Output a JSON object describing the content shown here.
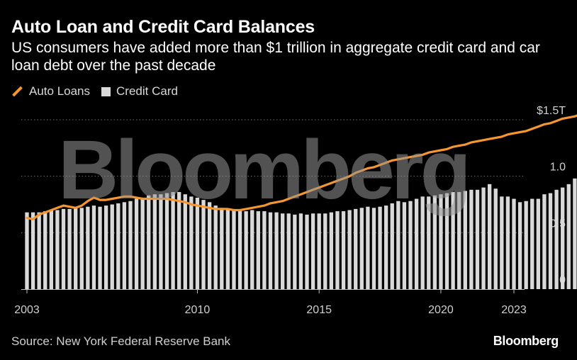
{
  "header": {
    "title": "Auto Loan and Credit Card Balances",
    "subtitle": "US consumers have added more than $1 trillion in aggregate credit card and car loan debt over the past decade"
  },
  "legend": {
    "auto_label": "Auto Loans",
    "card_label": "Credit Card"
  },
  "footer": {
    "source": "Source: New York Federal Reserve Bank",
    "brand": "Bloomberg"
  },
  "watermark": "Bloomberg",
  "colors": {
    "background": "#000000",
    "auto_line": "#f5962e",
    "card_bar": "#d9d9d9",
    "grid": "#6e6e6e"
  },
  "chart_data": {
    "type": "bar+line",
    "x_range": [
      2003.0,
      2023.0
    ],
    "ylim": [
      0,
      1.5
    ],
    "y_ticks": [
      {
        "value": 0,
        "label": "0"
      },
      {
        "value": 0.5,
        "label": "0.5"
      },
      {
        "value": 1.0,
        "label": "1.0"
      },
      {
        "value": 1.5,
        "label": "$1.5T"
      }
    ],
    "x_ticks": [
      {
        "value": 2003,
        "label": "2003"
      },
      {
        "value": 2010,
        "label": "2010"
      },
      {
        "value": 2015,
        "label": "2015"
      },
      {
        "value": 2020,
        "label": "2020"
      },
      {
        "value": 2023,
        "label": "2023"
      }
    ],
    "grid": "horizontal dotted",
    "legend_position": "top-left",
    "series": [
      {
        "name": "Auto Loans",
        "kind": "line",
        "start": 2003.0,
        "step": 0.25,
        "values": [
          0.63,
          0.62,
          0.66,
          0.68,
          0.7,
          0.72,
          0.74,
          0.73,
          0.72,
          0.74,
          0.78,
          0.81,
          0.79,
          0.79,
          0.8,
          0.81,
          0.82,
          0.82,
          0.81,
          0.8,
          0.8,
          0.8,
          0.8,
          0.8,
          0.79,
          0.78,
          0.77,
          0.75,
          0.74,
          0.73,
          0.72,
          0.71,
          0.71,
          0.71,
          0.7,
          0.7,
          0.71,
          0.72,
          0.73,
          0.74,
          0.76,
          0.77,
          0.78,
          0.8,
          0.82,
          0.84,
          0.86,
          0.88,
          0.9,
          0.92,
          0.94,
          0.96,
          0.98,
          1.0,
          1.03,
          1.05,
          1.07,
          1.08,
          1.1,
          1.12,
          1.14,
          1.15,
          1.16,
          1.17,
          1.18,
          1.19,
          1.21,
          1.22,
          1.23,
          1.24,
          1.26,
          1.27,
          1.28,
          1.3,
          1.31,
          1.32,
          1.33,
          1.34,
          1.35,
          1.37,
          1.38,
          1.39,
          1.4,
          1.42,
          1.44,
          1.46,
          1.47,
          1.49,
          1.51,
          1.52,
          1.53,
          1.55
        ]
      },
      {
        "name": "Credit Card",
        "kind": "bar",
        "start": 2003.0,
        "step": 0.25,
        "values": [
          0.68,
          0.68,
          0.68,
          0.69,
          0.7,
          0.7,
          0.71,
          0.71,
          0.72,
          0.72,
          0.73,
          0.74,
          0.73,
          0.74,
          0.75,
          0.76,
          0.77,
          0.78,
          0.8,
          0.81,
          0.83,
          0.84,
          0.84,
          0.85,
          0.86,
          0.86,
          0.84,
          0.82,
          0.81,
          0.79,
          0.77,
          0.74,
          0.72,
          0.7,
          0.7,
          0.7,
          0.69,
          0.7,
          0.69,
          0.69,
          0.68,
          0.68,
          0.67,
          0.67,
          0.66,
          0.67,
          0.66,
          0.67,
          0.67,
          0.67,
          0.68,
          0.69,
          0.69,
          0.7,
          0.71,
          0.72,
          0.73,
          0.72,
          0.73,
          0.74,
          0.76,
          0.78,
          0.77,
          0.78,
          0.8,
          0.82,
          0.82,
          0.83,
          0.84,
          0.85,
          0.86,
          0.86,
          0.87,
          0.88,
          0.88,
          0.9,
          0.93,
          0.89,
          0.82,
          0.82,
          0.8,
          0.77,
          0.78,
          0.8,
          0.8,
          0.84,
          0.85,
          0.88,
          0.9,
          0.93,
          0.98,
          0.99,
          1.03
        ]
      }
    ]
  }
}
